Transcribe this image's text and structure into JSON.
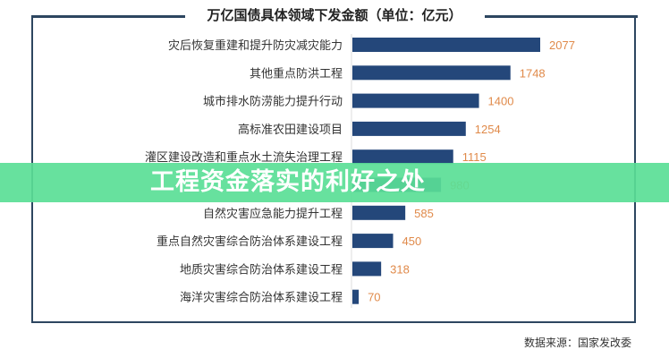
{
  "banner": {
    "text": "工程资金落实的利好之处"
  },
  "source": "数据来源：国家发改委",
  "colors": {
    "bar": "#24477a",
    "label_value": "#e08a4a",
    "frame": "#2d4660",
    "banner": "#5ade96"
  },
  "chart_data": {
    "type": "bar",
    "orientation": "horizontal",
    "title": "万亿国债具体领域下发金额（单位：亿元）",
    "categories": [
      "灾后恢复重建和提升防灾减灾能力",
      "其他重点防洪工程",
      "城市排水防涝能力提升行动",
      "高标准农田建设项目",
      "灌区建设改造和重点水土流失治理工程",
      "",
      "自然灾害应急能力提升工程",
      "重点自然灾害综合防治体系建设工程",
      "地质灾害综合防治体系建设工程",
      "海洋灾害综合防治体系建设工程"
    ],
    "values": [
      2077,
      1748,
      1400,
      1254,
      1115,
      980,
      585,
      450,
      318,
      70
    ],
    "xlim": [
      0,
      2077
    ],
    "grid": false
  }
}
